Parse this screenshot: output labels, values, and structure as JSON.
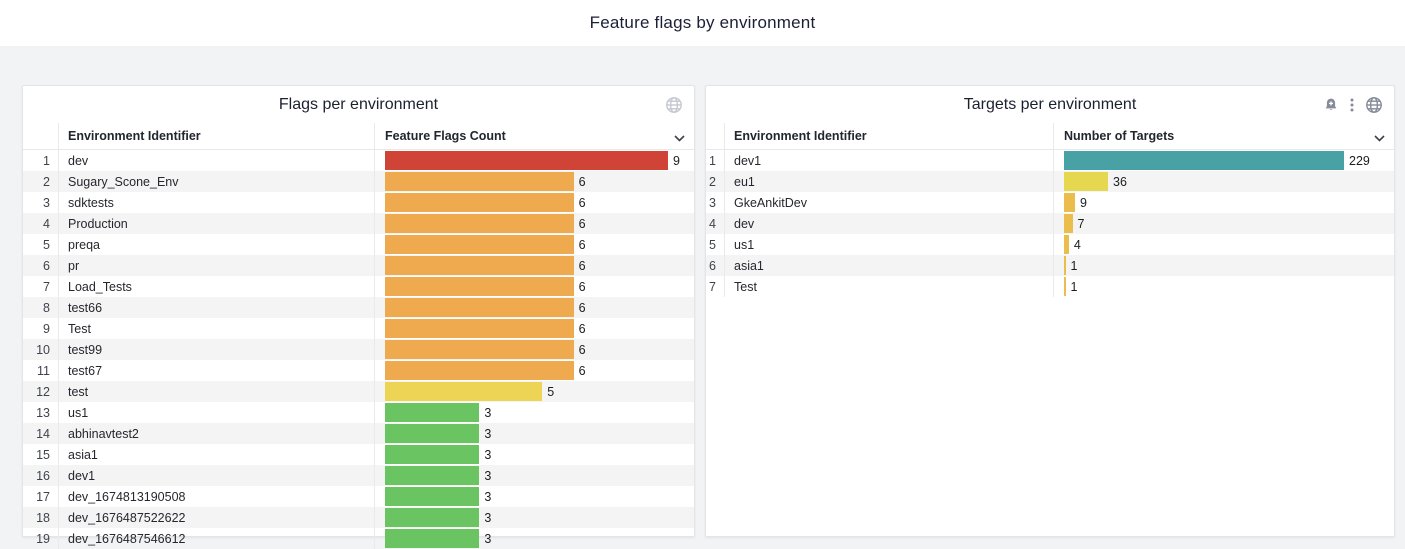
{
  "page": {
    "title": "Feature flags by environment"
  },
  "colors": {
    "red": "#cf4436",
    "orange": "#efa94e",
    "yellow": "#eed455",
    "green": "#6bc462",
    "teal": "#47a1a5",
    "yellow_green": "#e5d74f",
    "gold": "#eabd4d",
    "row_alt_bg": "#f4f4f5",
    "panel_bg": "#ffffff",
    "page_bg": "#f2f3f5"
  },
  "panels": [
    {
      "title": "Flags per environment",
      "icons": [
        "globe-icon"
      ],
      "columns": [
        "Environment Identifier",
        "Feature Flags Count"
      ],
      "max_value": 9,
      "rows": [
        {
          "n": 1,
          "name": "dev",
          "value": 9,
          "color": "#cf4436"
        },
        {
          "n": 2,
          "name": "Sugary_Scone_Env",
          "value": 6,
          "color": "#efa94e"
        },
        {
          "n": 3,
          "name": "sdktests",
          "value": 6,
          "color": "#efa94e"
        },
        {
          "n": 4,
          "name": "Production",
          "value": 6,
          "color": "#efa94e"
        },
        {
          "n": 5,
          "name": "preqa",
          "value": 6,
          "color": "#efa94e"
        },
        {
          "n": 6,
          "name": "pr",
          "value": 6,
          "color": "#efa94e"
        },
        {
          "n": 7,
          "name": "Load_Tests",
          "value": 6,
          "color": "#efa94e"
        },
        {
          "n": 8,
          "name": "test66",
          "value": 6,
          "color": "#efa94e"
        },
        {
          "n": 9,
          "name": "Test",
          "value": 6,
          "color": "#efa94e"
        },
        {
          "n": 10,
          "name": "test99",
          "value": 6,
          "color": "#efa94e"
        },
        {
          "n": 11,
          "name": "test67",
          "value": 6,
          "color": "#efa94e"
        },
        {
          "n": 12,
          "name": "test",
          "value": 5,
          "color": "#eed455"
        },
        {
          "n": 13,
          "name": "us1",
          "value": 3,
          "color": "#6bc462"
        },
        {
          "n": 14,
          "name": "abhinavtest2",
          "value": 3,
          "color": "#6bc462"
        },
        {
          "n": 15,
          "name": "asia1",
          "value": 3,
          "color": "#6bc462"
        },
        {
          "n": 16,
          "name": "dev1",
          "value": 3,
          "color": "#6bc462"
        },
        {
          "n": 17,
          "name": "dev_1674813190508",
          "value": 3,
          "color": "#6bc462"
        },
        {
          "n": 18,
          "name": "dev_1676487522622",
          "value": 3,
          "color": "#6bc462"
        },
        {
          "n": 19,
          "name": "dev_1676487546612",
          "value": 3,
          "color": "#6bc462"
        }
      ]
    },
    {
      "title": "Targets per environment",
      "icons": [
        "alert-bell-icon",
        "kebab-menu-icon",
        "globe-icon"
      ],
      "columns": [
        "Environment Identifier",
        "Number of Targets"
      ],
      "max_value": 229,
      "rows": [
        {
          "n": 1,
          "name": "dev1",
          "value": 229,
          "color": "#47a1a5"
        },
        {
          "n": 2,
          "name": "eu1",
          "value": 36,
          "color": "#e5d74f"
        },
        {
          "n": 3,
          "name": "GkeAnkitDev",
          "value": 9,
          "color": "#eabd4d"
        },
        {
          "n": 4,
          "name": "dev",
          "value": 7,
          "color": "#eabd4d"
        },
        {
          "n": 5,
          "name": "us1",
          "value": 4,
          "color": "#eabd4d"
        },
        {
          "n": 6,
          "name": "asia1",
          "value": 1,
          "color": "#eabd4d"
        },
        {
          "n": 7,
          "name": "Test",
          "value": 1,
          "color": "#eabd4d"
        }
      ]
    }
  ],
  "chart_data": [
    {
      "type": "bar",
      "orientation": "horizontal",
      "title": "Flags per environment",
      "categories": [
        "dev",
        "Sugary_Scone_Env",
        "sdktests",
        "Production",
        "preqa",
        "pr",
        "Load_Tests",
        "test66",
        "Test",
        "test99",
        "test67",
        "test",
        "us1",
        "abhinavtest2",
        "asia1",
        "dev1",
        "dev_1674813190508",
        "dev_1676487522622",
        "dev_1676487546612"
      ],
      "values": [
        9,
        6,
        6,
        6,
        6,
        6,
        6,
        6,
        6,
        6,
        6,
        5,
        3,
        3,
        3,
        3,
        3,
        3,
        3
      ],
      "xlabel": "Feature Flags Count",
      "ylabel": "Environment Identifier",
      "xlim": [
        0,
        9
      ],
      "legend": "none",
      "grid": false
    },
    {
      "type": "bar",
      "orientation": "horizontal",
      "title": "Targets per environment",
      "categories": [
        "dev1",
        "eu1",
        "GkeAnkitDev",
        "dev",
        "us1",
        "asia1",
        "Test"
      ],
      "values": [
        229,
        36,
        9,
        7,
        4,
        1,
        1
      ],
      "xlabel": "Number of Targets",
      "ylabel": "Environment Identifier",
      "xlim": [
        0,
        229
      ],
      "legend": "none",
      "grid": false
    }
  ]
}
